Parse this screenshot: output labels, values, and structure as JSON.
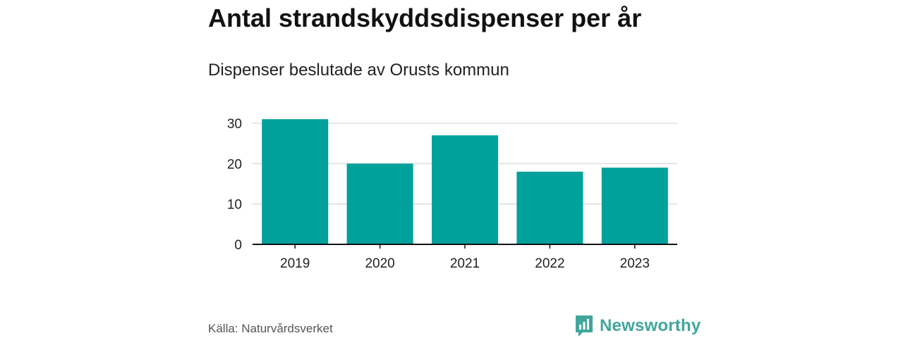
{
  "header": {
    "title": "Antal strandskyddsdispenser per år",
    "subtitle": "Dispenser beslutade av Orusts kommun"
  },
  "footer": {
    "source": "Källa: Naturvårdsverket",
    "brand": "Newsworthy",
    "brand_icon": "newsworthy-logo-icon"
  },
  "colors": {
    "bar": "#00a19a",
    "grid": "#dddddd",
    "axis": "#111111",
    "brand": "#41a69b"
  },
  "chart_data": {
    "type": "bar",
    "title": "Antal strandskyddsdispenser per år",
    "subtitle": "Dispenser beslutade av Orusts kommun",
    "categories": [
      "2019",
      "2020",
      "2021",
      "2022",
      "2023"
    ],
    "values": [
      31,
      20,
      27,
      18,
      19
    ],
    "xlabel": "",
    "ylabel": "",
    "ylim": [
      0,
      30
    ],
    "yticks": [
      0,
      10,
      20,
      30
    ],
    "grid": true,
    "legend": "none"
  }
}
